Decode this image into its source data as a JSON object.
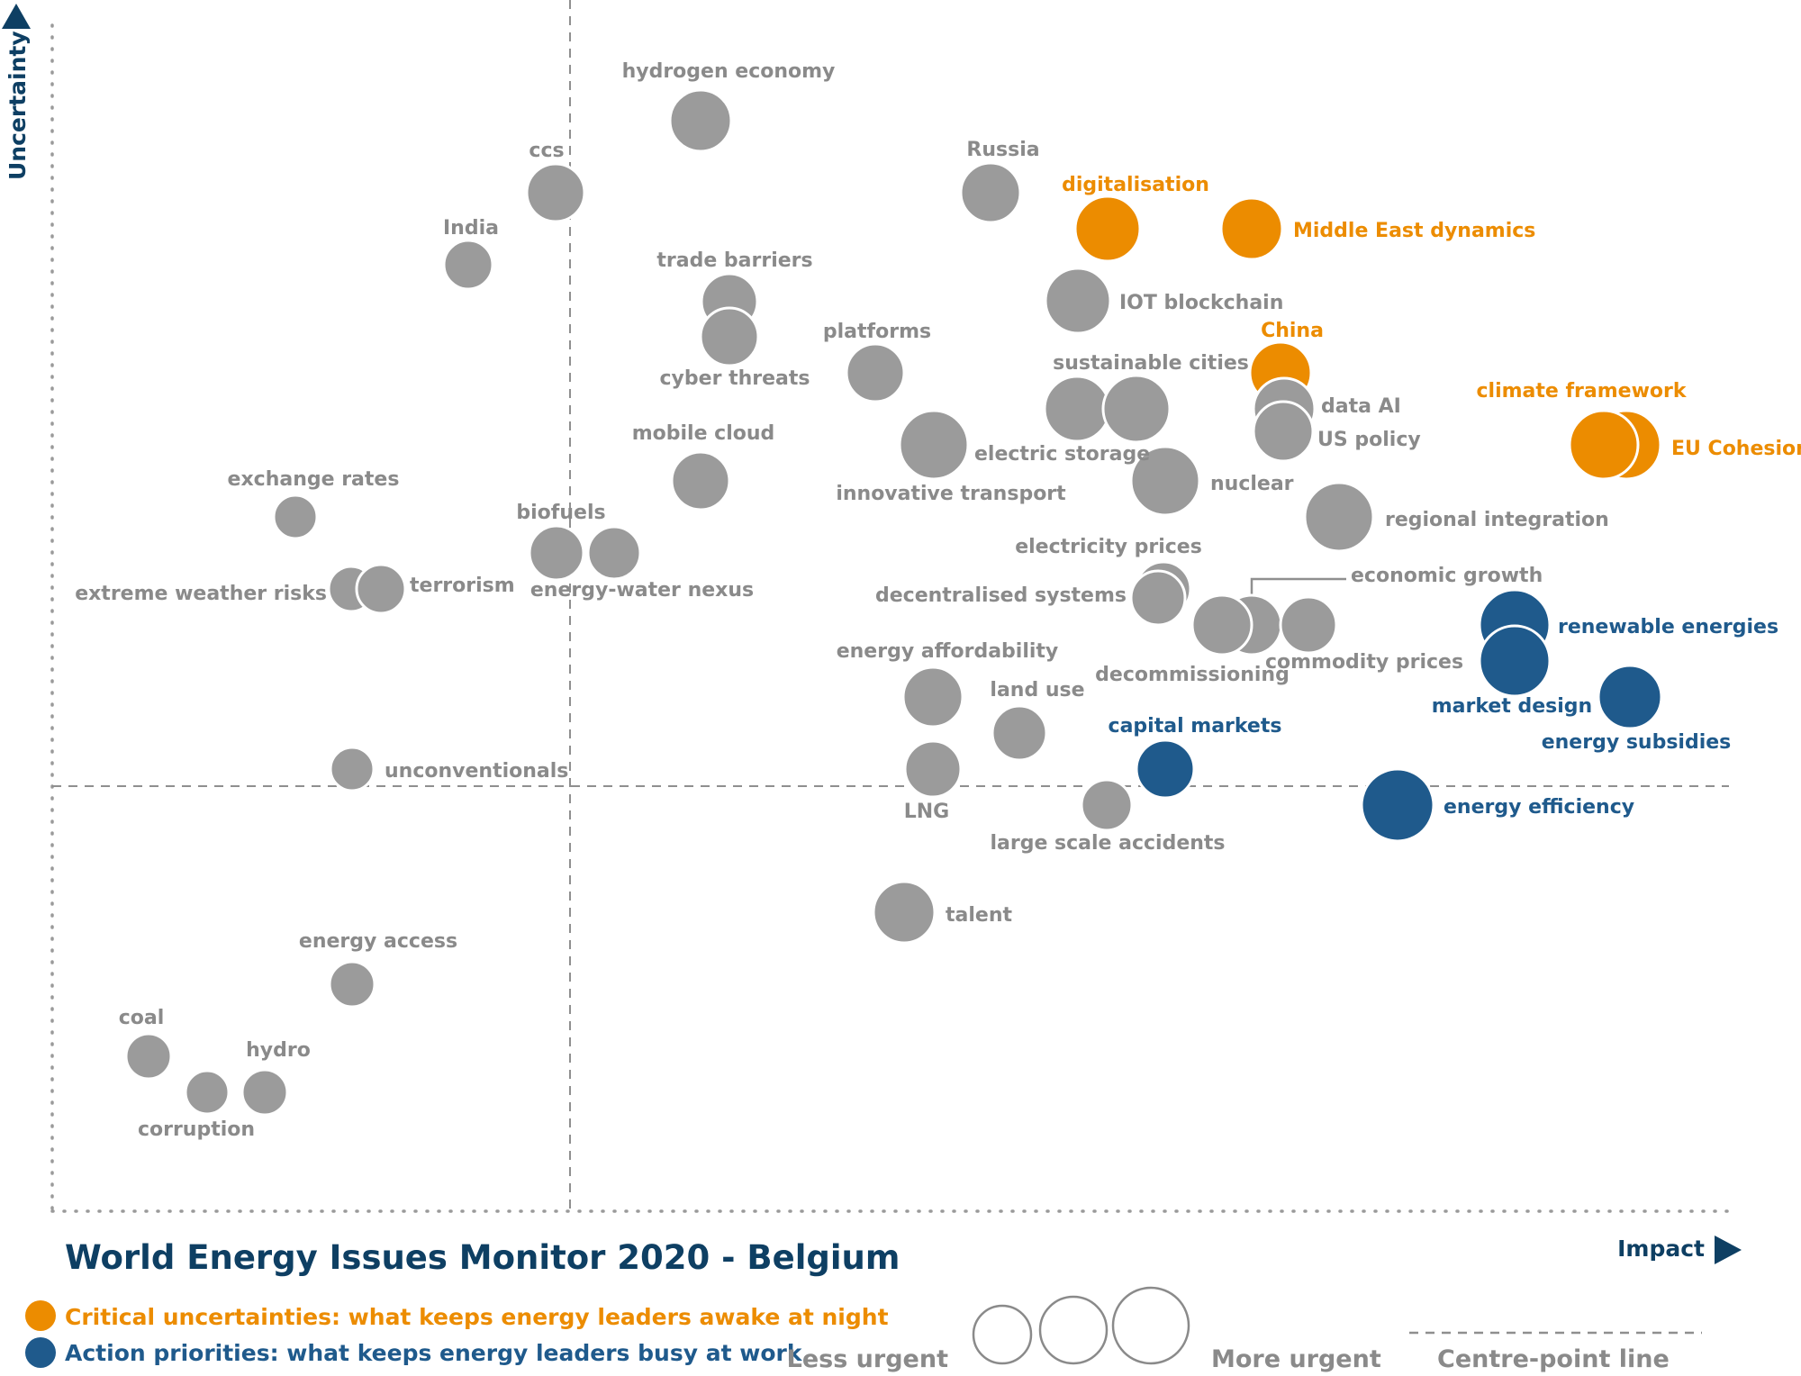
{
  "colors": {
    "grey": "#9b9b9b",
    "grey_label": "#8a8a8a",
    "orange": "#ec8c00",
    "blue": "#1f5a8c",
    "navy": "#0e3f63"
  },
  "chart_data": {
    "type": "scatter",
    "title": "World Energy Issues Monitor 2020 - Belgium",
    "xlabel": "Impact",
    "ylabel": "Uncertainty",
    "centre_line_label": "Centre-point  line",
    "size_legend": {
      "less": "Less urgent",
      "more": "More urgent"
    },
    "categories": [
      {
        "id": "critical",
        "label": "Critical uncertainties: what keeps energy leaders awake at night",
        "color": "#ec8c00"
      },
      {
        "id": "action",
        "label": "Action priorities: what keeps energy leaders busy at work",
        "color": "#1f5a8c"
      }
    ],
    "points": [
      {
        "name": "hydrogen economy",
        "x": 0.3,
        "y": 0.68,
        "category": "neutral"
      },
      {
        "name": "ccs",
        "x": 0.22,
        "y": 0.61,
        "category": "neutral"
      },
      {
        "name": "India",
        "x": 0.16,
        "y": 0.54,
        "category": "neutral"
      },
      {
        "name": "Russia",
        "x": 0.51,
        "y": 0.61,
        "category": "neutral"
      },
      {
        "name": "digitalisation",
        "x": 0.59,
        "y": 0.58,
        "category": "critical"
      },
      {
        "name": "Middle East dynamics",
        "x": 0.69,
        "y": 0.58,
        "category": "critical"
      },
      {
        "name": "trade barriers",
        "x": 0.32,
        "y": 0.5,
        "category": "neutral"
      },
      {
        "name": "cyber threats",
        "x": 0.32,
        "y": 0.47,
        "category": "neutral"
      },
      {
        "name": "IOT blockchain",
        "x": 0.57,
        "y": 0.51,
        "category": "neutral"
      },
      {
        "name": "platforms",
        "x": 0.44,
        "y": 0.43,
        "category": "neutral"
      },
      {
        "name": "China",
        "x": 0.7,
        "y": 0.43,
        "category": "critical"
      },
      {
        "name": "sustainable cities",
        "x": 0.57,
        "y": 0.4,
        "category": "neutral"
      },
      {
        "name": "data AI",
        "x": 0.7,
        "y": 0.4,
        "category": "neutral"
      },
      {
        "name": "US policy",
        "x": 0.71,
        "y": 0.37,
        "category": "neutral"
      },
      {
        "name": "climate framework",
        "x": 0.87,
        "y": 0.37,
        "category": "critical"
      },
      {
        "name": "EU Cohesion",
        "x": 0.89,
        "y": 0.37,
        "category": "critical"
      },
      {
        "name": "electric storage",
        "x": 0.6,
        "y": 0.4,
        "category": "neutral"
      },
      {
        "name": "innovative transport",
        "x": 0.48,
        "y": 0.36,
        "category": "neutral"
      },
      {
        "name": "nuclear",
        "x": 0.62,
        "y": 0.32,
        "category": "neutral"
      },
      {
        "name": "mobile cloud",
        "x": 0.36,
        "y": 0.32,
        "category": "neutral"
      },
      {
        "name": "regional integration",
        "x": 0.72,
        "y": 0.28,
        "category": "neutral"
      },
      {
        "name": "exchange rates",
        "x": 0.14,
        "y": 0.28,
        "category": "neutral"
      },
      {
        "name": "biofuels",
        "x": 0.28,
        "y": 0.25,
        "category": "neutral"
      },
      {
        "name": "energy-water nexus",
        "x": 0.3,
        "y": 0.25,
        "category": "neutral"
      },
      {
        "name": "extreme weather risks",
        "x": 0.17,
        "y": 0.21,
        "category": "neutral"
      },
      {
        "name": "terrorism",
        "x": 0.18,
        "y": 0.21,
        "category": "neutral"
      },
      {
        "name": "electricity prices",
        "x": 0.64,
        "y": 0.23,
        "category": "neutral"
      },
      {
        "name": "decentralised systems",
        "x": 0.63,
        "y": 0.22,
        "category": "neutral"
      },
      {
        "name": "economic growth",
        "x": 0.67,
        "y": 0.18,
        "category": "neutral"
      },
      {
        "name": "decommissioning",
        "x": 0.65,
        "y": 0.18,
        "category": "neutral"
      },
      {
        "name": "commodity prices",
        "x": 0.71,
        "y": 0.18,
        "category": "neutral"
      },
      {
        "name": "renewable energies",
        "x": 0.8,
        "y": 0.18,
        "category": "action"
      },
      {
        "name": "market design",
        "x": 0.8,
        "y": 0.14,
        "category": "action"
      },
      {
        "name": "energy subsidies",
        "x": 0.87,
        "y": 0.1,
        "category": "action"
      },
      {
        "name": "energy affordability",
        "x": 0.48,
        "y": 0.1,
        "category": "neutral"
      },
      {
        "name": "land use",
        "x": 0.53,
        "y": 0.06,
        "category": "neutral"
      },
      {
        "name": "capital markets",
        "x": 0.63,
        "y": 0.02,
        "category": "action"
      },
      {
        "name": "unconventionals",
        "x": 0.17,
        "y": 0.02,
        "category": "neutral"
      },
      {
        "name": "LNG",
        "x": 0.48,
        "y": 0.02,
        "category": "neutral"
      },
      {
        "name": "energy efficiency",
        "x": 0.76,
        "y": -0.02,
        "category": "action"
      },
      {
        "name": "large scale accidents",
        "x": 0.6,
        "y": -0.02,
        "category": "neutral"
      },
      {
        "name": "talent",
        "x": 0.46,
        "y": -0.14,
        "category": "neutral"
      },
      {
        "name": "energy access",
        "x": 0.17,
        "y": -0.21,
        "category": "neutral"
      },
      {
        "name": "coal",
        "x": 0.05,
        "y": -0.29,
        "category": "neutral"
      },
      {
        "name": "hydro",
        "x": 0.11,
        "y": -0.33,
        "category": "neutral"
      },
      {
        "name": "corruption",
        "x": 0.09,
        "y": -0.33,
        "category": "neutral"
      }
    ]
  }
}
